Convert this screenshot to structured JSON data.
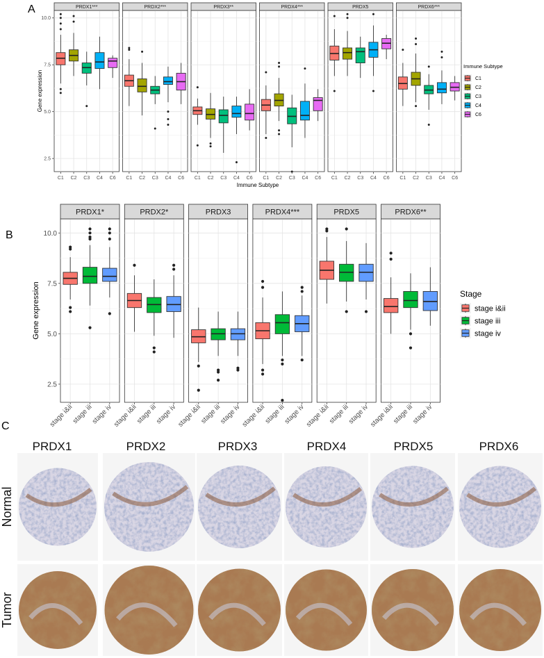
{
  "panel_letters": [
    "A",
    "B",
    "C"
  ],
  "chart_data": [
    {
      "type": "box",
      "panel": "A",
      "xlabel": "Immune Subtype",
      "ylabel": "Gene expression",
      "ylim": [
        1.8,
        10.4
      ],
      "yticks": [
        2.5,
        5.0,
        7.5,
        10.0
      ],
      "y_tick_labels": [
        "2.5",
        "5.0",
        "7.5",
        "10.0"
      ],
      "categories": [
        "C1",
        "C2",
        "C3",
        "C4",
        "C6"
      ],
      "colors": [
        "#F8766D",
        "#A3A500",
        "#00BF7D",
        "#00B0F6",
        "#E76BF3"
      ],
      "legend": {
        "title": "Immune Subtype",
        "labels": [
          "C1",
          "C2",
          "C3",
          "C4",
          "C6"
        ],
        "position": "right"
      },
      "facets": [
        {
          "title": "PRDX1***",
          "boxes": [
            {
              "q1": 7.5,
              "median": 7.85,
              "q3": 8.15,
              "lo": 6.5,
              "hi": 9.1,
              "out": [
                9.4,
                9.7,
                10.0,
                10.2,
                6.0,
                6.2
              ]
            },
            {
              "q1": 7.7,
              "median": 8.0,
              "q3": 8.3,
              "lo": 6.9,
              "hi": 9.2,
              "out": [
                9.8,
                10.1
              ]
            },
            {
              "q1": 7.05,
              "median": 7.35,
              "q3": 7.6,
              "lo": 6.4,
              "hi": 8.2,
              "out": [
                5.3
              ]
            },
            {
              "q1": 7.3,
              "median": 7.65,
              "q3": 8.15,
              "lo": 6.2,
              "hi": 9.0,
              "out": []
            },
            {
              "q1": 7.35,
              "median": 7.7,
              "q3": 7.85,
              "lo": 6.8,
              "hi": 8.0,
              "out": []
            }
          ]
        },
        {
          "title": "PRDX2***",
          "boxes": [
            {
              "q1": 6.35,
              "median": 6.65,
              "q3": 6.95,
              "lo": 5.3,
              "hi": 7.8,
              "out": [
                8.4,
                8.3
              ]
            },
            {
              "q1": 6.05,
              "median": 6.35,
              "q3": 6.75,
              "lo": 4.8,
              "hi": 7.6,
              "out": [
                8.2
              ]
            },
            {
              "q1": 5.95,
              "median": 6.15,
              "q3": 6.35,
              "lo": 5.4,
              "hi": 6.9,
              "out": [
                4.1
              ]
            },
            {
              "q1": 6.45,
              "median": 6.6,
              "q3": 6.85,
              "lo": 5.5,
              "hi": 7.4,
              "out": [
                5.0,
                4.6,
                4.3
              ]
            },
            {
              "q1": 6.15,
              "median": 6.6,
              "q3": 7.05,
              "lo": 5.4,
              "hi": 7.6,
              "out": []
            }
          ]
        },
        {
          "title": "PRDX3**",
          "boxes": [
            {
              "q1": 4.85,
              "median": 5.05,
              "q3": 5.25,
              "lo": 4.3,
              "hi": 5.7,
              "out": [
                6.3,
                3.2
              ]
            },
            {
              "q1": 4.6,
              "median": 4.85,
              "q3": 5.15,
              "lo": 3.6,
              "hi": 6.0,
              "out": [
                3.3,
                3.15
              ]
            },
            {
              "q1": 4.4,
              "median": 4.8,
              "q3": 5.1,
              "lo": 2.8,
              "hi": 5.8,
              "out": []
            },
            {
              "q1": 4.7,
              "median": 4.9,
              "q3": 5.3,
              "lo": 3.8,
              "hi": 5.8,
              "out": [
                2.3
              ]
            },
            {
              "q1": 4.55,
              "median": 4.9,
              "q3": 5.4,
              "lo": 4.0,
              "hi": 6.2,
              "out": []
            }
          ]
        },
        {
          "title": "PRDX4***",
          "boxes": [
            {
              "q1": 5.05,
              "median": 5.35,
              "q3": 5.65,
              "lo": 3.8,
              "hi": 6.4,
              "out": [
                7.1,
                3.6
              ]
            },
            {
              "q1": 5.3,
              "median": 5.6,
              "q3": 5.95,
              "lo": 4.5,
              "hi": 6.8,
              "out": [
                7.6,
                7.4,
                4.0,
                3.8
              ]
            },
            {
              "q1": 4.35,
              "median": 4.75,
              "q3": 5.2,
              "lo": 3.1,
              "hi": 5.9,
              "out": [
                1.8
              ]
            },
            {
              "q1": 4.55,
              "median": 4.8,
              "q3": 5.55,
              "lo": 3.6,
              "hi": 6.5,
              "out": [
                7.3
              ]
            },
            {
              "q1": 5.05,
              "median": 5.6,
              "q3": 5.75,
              "lo": 4.5,
              "hi": 6.2,
              "out": []
            }
          ]
        },
        {
          "title": "PRDX5",
          "boxes": [
            {
              "q1": 7.75,
              "median": 8.1,
              "q3": 8.5,
              "lo": 6.9,
              "hi": 9.4,
              "out": [
                10.1,
                6.1
              ]
            },
            {
              "q1": 7.8,
              "median": 8.15,
              "q3": 8.4,
              "lo": 6.9,
              "hi": 9.3,
              "out": [
                10.2,
                10.0
              ]
            },
            {
              "q1": 7.6,
              "median": 8.2,
              "q3": 8.4,
              "lo": 6.8,
              "hi": 9.0,
              "out": []
            },
            {
              "q1": 7.9,
              "median": 8.3,
              "q3": 8.7,
              "lo": 6.9,
              "hi": 9.6,
              "out": [
                10.2,
                6.1
              ]
            },
            {
              "q1": 8.35,
              "median": 8.65,
              "q3": 8.9,
              "lo": 7.8,
              "hi": 9.1,
              "out": []
            }
          ]
        },
        {
          "title": "PRDX6***",
          "boxes": [
            {
              "q1": 6.2,
              "median": 6.5,
              "q3": 6.85,
              "lo": 5.3,
              "hi": 7.6,
              "out": [
                8.3
              ]
            },
            {
              "q1": 6.4,
              "median": 6.75,
              "q3": 7.1,
              "lo": 5.5,
              "hi": 8.1,
              "out": [
                8.9,
                8.6,
                5.3
              ]
            },
            {
              "q1": 5.95,
              "median": 6.15,
              "q3": 6.4,
              "lo": 5.1,
              "hi": 7.0,
              "out": [
                7.4,
                4.3
              ]
            },
            {
              "q1": 6.0,
              "median": 6.2,
              "q3": 6.55,
              "lo": 5.4,
              "hi": 7.2,
              "out": [
                8.2,
                7.9
              ]
            },
            {
              "q1": 6.1,
              "median": 6.3,
              "q3": 6.55,
              "lo": 5.6,
              "hi": 6.9,
              "out": []
            }
          ]
        }
      ]
    },
    {
      "type": "box",
      "panel": "B",
      "xlabel": "",
      "ylabel": "Gene expression",
      "ylim": [
        1.6,
        10.7
      ],
      "yticks": [
        2.5,
        5.0,
        7.5,
        10.0
      ],
      "y_tick_labels": [
        "2.5",
        "5.0",
        "7.5",
        "10.0"
      ],
      "categories": [
        "stage i&ii",
        "stage iii",
        "stage iv"
      ],
      "colors": [
        "#F8766D",
        "#00BA38",
        "#619CFF"
      ],
      "legend": {
        "title": "Stage",
        "labels": [
          "stage i&ii",
          "stage iii",
          "stage iv"
        ],
        "position": "right"
      },
      "facets": [
        {
          "title": "PRDX1*",
          "boxes": [
            {
              "q1": 7.45,
              "median": 7.75,
              "q3": 8.05,
              "lo": 6.7,
              "hi": 8.8,
              "out": [
                9.3,
                9.2,
                6.3,
                6.1
              ]
            },
            {
              "q1": 7.5,
              "median": 7.85,
              "q3": 8.3,
              "lo": 6.4,
              "hi": 9.4,
              "out": [
                10.2,
                10.0,
                9.8,
                9.7,
                5.3
              ]
            },
            {
              "q1": 7.6,
              "median": 7.85,
              "q3": 8.25,
              "lo": 6.8,
              "hi": 9.3,
              "out": [
                10.2,
                10.0,
                9.7,
                6.0
              ]
            }
          ]
        },
        {
          "title": "PRDX2*",
          "boxes": [
            {
              "q1": 6.3,
              "median": 6.65,
              "q3": 7.0,
              "lo": 5.1,
              "hi": 7.9,
              "out": [
                8.4
              ]
            },
            {
              "q1": 6.05,
              "median": 6.45,
              "q3": 6.8,
              "lo": 4.9,
              "hi": 7.7,
              "out": [
                4.3,
                4.1
              ]
            },
            {
              "q1": 6.1,
              "median": 6.45,
              "q3": 6.85,
              "lo": 4.8,
              "hi": 7.9,
              "out": [
                8.4,
                8.2
              ]
            }
          ]
        },
        {
          "title": "PRDX3",
          "boxes": [
            {
              "q1": 4.55,
              "median": 4.85,
              "q3": 5.2,
              "lo": 3.6,
              "hi": 6.3,
              "out": [
                3.4,
                2.2
              ]
            },
            {
              "q1": 4.7,
              "median": 5.0,
              "q3": 5.25,
              "lo": 3.9,
              "hi": 6.1,
              "out": [
                3.2,
                3.1,
                2.7
              ]
            },
            {
              "q1": 4.7,
              "median": 5.0,
              "q3": 5.25,
              "lo": 3.9,
              "hi": 6.1,
              "out": [
                3.3,
                3.2
              ]
            }
          ]
        },
        {
          "title": "PRDX4***",
          "boxes": [
            {
              "q1": 4.75,
              "median": 5.15,
              "q3": 5.55,
              "lo": 3.5,
              "hi": 6.8,
              "out": [
                7.6,
                7.3,
                3.2,
                3.0
              ]
            },
            {
              "q1": 5.0,
              "median": 5.55,
              "q3": 5.95,
              "lo": 3.9,
              "hi": 7.1,
              "out": [
                3.7,
                3.5,
                1.7
              ]
            },
            {
              "q1": 5.1,
              "median": 5.5,
              "q3": 5.9,
              "lo": 3.9,
              "hi": 6.9,
              "out": [
                7.3,
                7.1,
                3.7
              ]
            }
          ]
        },
        {
          "title": "PRDX5",
          "boxes": [
            {
              "q1": 7.7,
              "median": 8.15,
              "q3": 8.6,
              "lo": 6.5,
              "hi": 9.8,
              "out": [
                10.2,
                10.1
              ]
            },
            {
              "q1": 7.6,
              "median": 8.05,
              "q3": 8.45,
              "lo": 6.6,
              "hi": 9.6,
              "out": [
                10.2,
                6.1
              ]
            },
            {
              "q1": 7.6,
              "median": 8.05,
              "q3": 8.45,
              "lo": 6.7,
              "hi": 9.5,
              "out": [
                6.1
              ]
            }
          ]
        },
        {
          "title": "PRDX6**",
          "boxes": [
            {
              "q1": 6.05,
              "median": 6.35,
              "q3": 6.75,
              "lo": 5.0,
              "hi": 7.8,
              "out": [
                9.0,
                8.7
              ]
            },
            {
              "q1": 6.3,
              "median": 6.65,
              "q3": 7.1,
              "lo": 5.2,
              "hi": 8.0,
              "out": [
                5.0,
                4.3
              ]
            },
            {
              "q1": 6.15,
              "median": 6.6,
              "q3": 7.1,
              "lo": 5.4,
              "hi": 8.3,
              "out": []
            }
          ]
        }
      ]
    }
  ],
  "ihc": {
    "genes": [
      "PRDX1",
      "PRDX2",
      "PRDX3",
      "PRDX4",
      "PRDX5",
      "PRDX6"
    ],
    "rows": [
      "Normal",
      "Tumor"
    ]
  }
}
